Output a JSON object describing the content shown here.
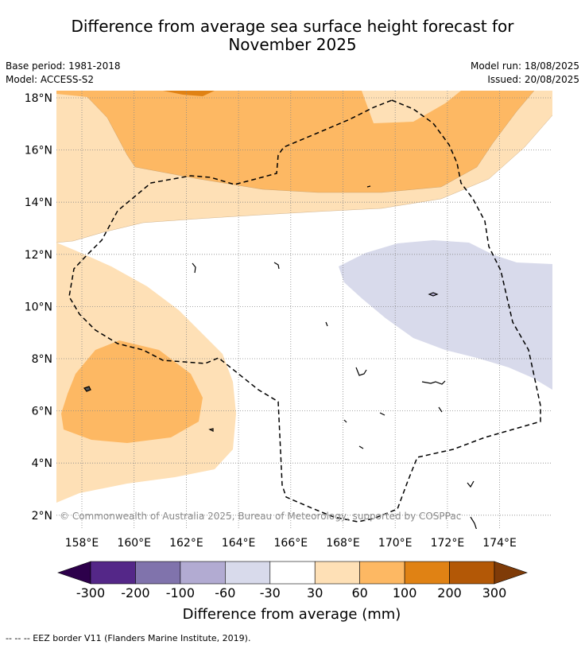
{
  "title": {
    "line1": "Difference from average sea surface height forecast for",
    "line2": "November 2025"
  },
  "meta": {
    "base_period": "Base period: 1981-2018",
    "model": "Model: ACCESS-S2",
    "model_run": "Model run: 18/08/2025",
    "issued": "Issued: 20/08/2025"
  },
  "map": {
    "lat_labels": [
      "18°N",
      "16°N",
      "14°N",
      "12°N",
      "10°N",
      "8°N",
      "6°N",
      "4°N",
      "2°N"
    ],
    "lat_values": [
      18,
      16,
      14,
      12,
      10,
      8,
      6,
      4,
      2
    ],
    "lon_labels": [
      "158°E",
      "160°E",
      "162°E",
      "164°E",
      "166°E",
      "168°E",
      "170°E",
      "172°E",
      "174°E"
    ],
    "lon_values": [
      158,
      160,
      162,
      164,
      166,
      168,
      170,
      172,
      174
    ],
    "lat_range": [
      1.5,
      18.2
    ],
    "lon_range": [
      157,
      176
    ],
    "copyright": "© Commonwealth of Australia 2025, Bureau of Meteorology, supported by COSPPac"
  },
  "legend": {
    "title": "Difference from average (mm)",
    "tick_labels": [
      "-300",
      "-200",
      "-100",
      "-60",
      "-30",
      "30",
      "60",
      "100",
      "200",
      "300"
    ],
    "colors": [
      "#2d004b",
      "#542788",
      "#8073ac",
      "#b2abd2",
      "#d8daeb",
      "#ffffff",
      "#fee0b6",
      "#fdb863",
      "#e08214",
      "#b35806",
      "#7f3b08"
    ]
  },
  "footer": {
    "eez_note": "--  --  -- EEZ border V11 (Flanders Marine Institute, 2019)."
  }
}
